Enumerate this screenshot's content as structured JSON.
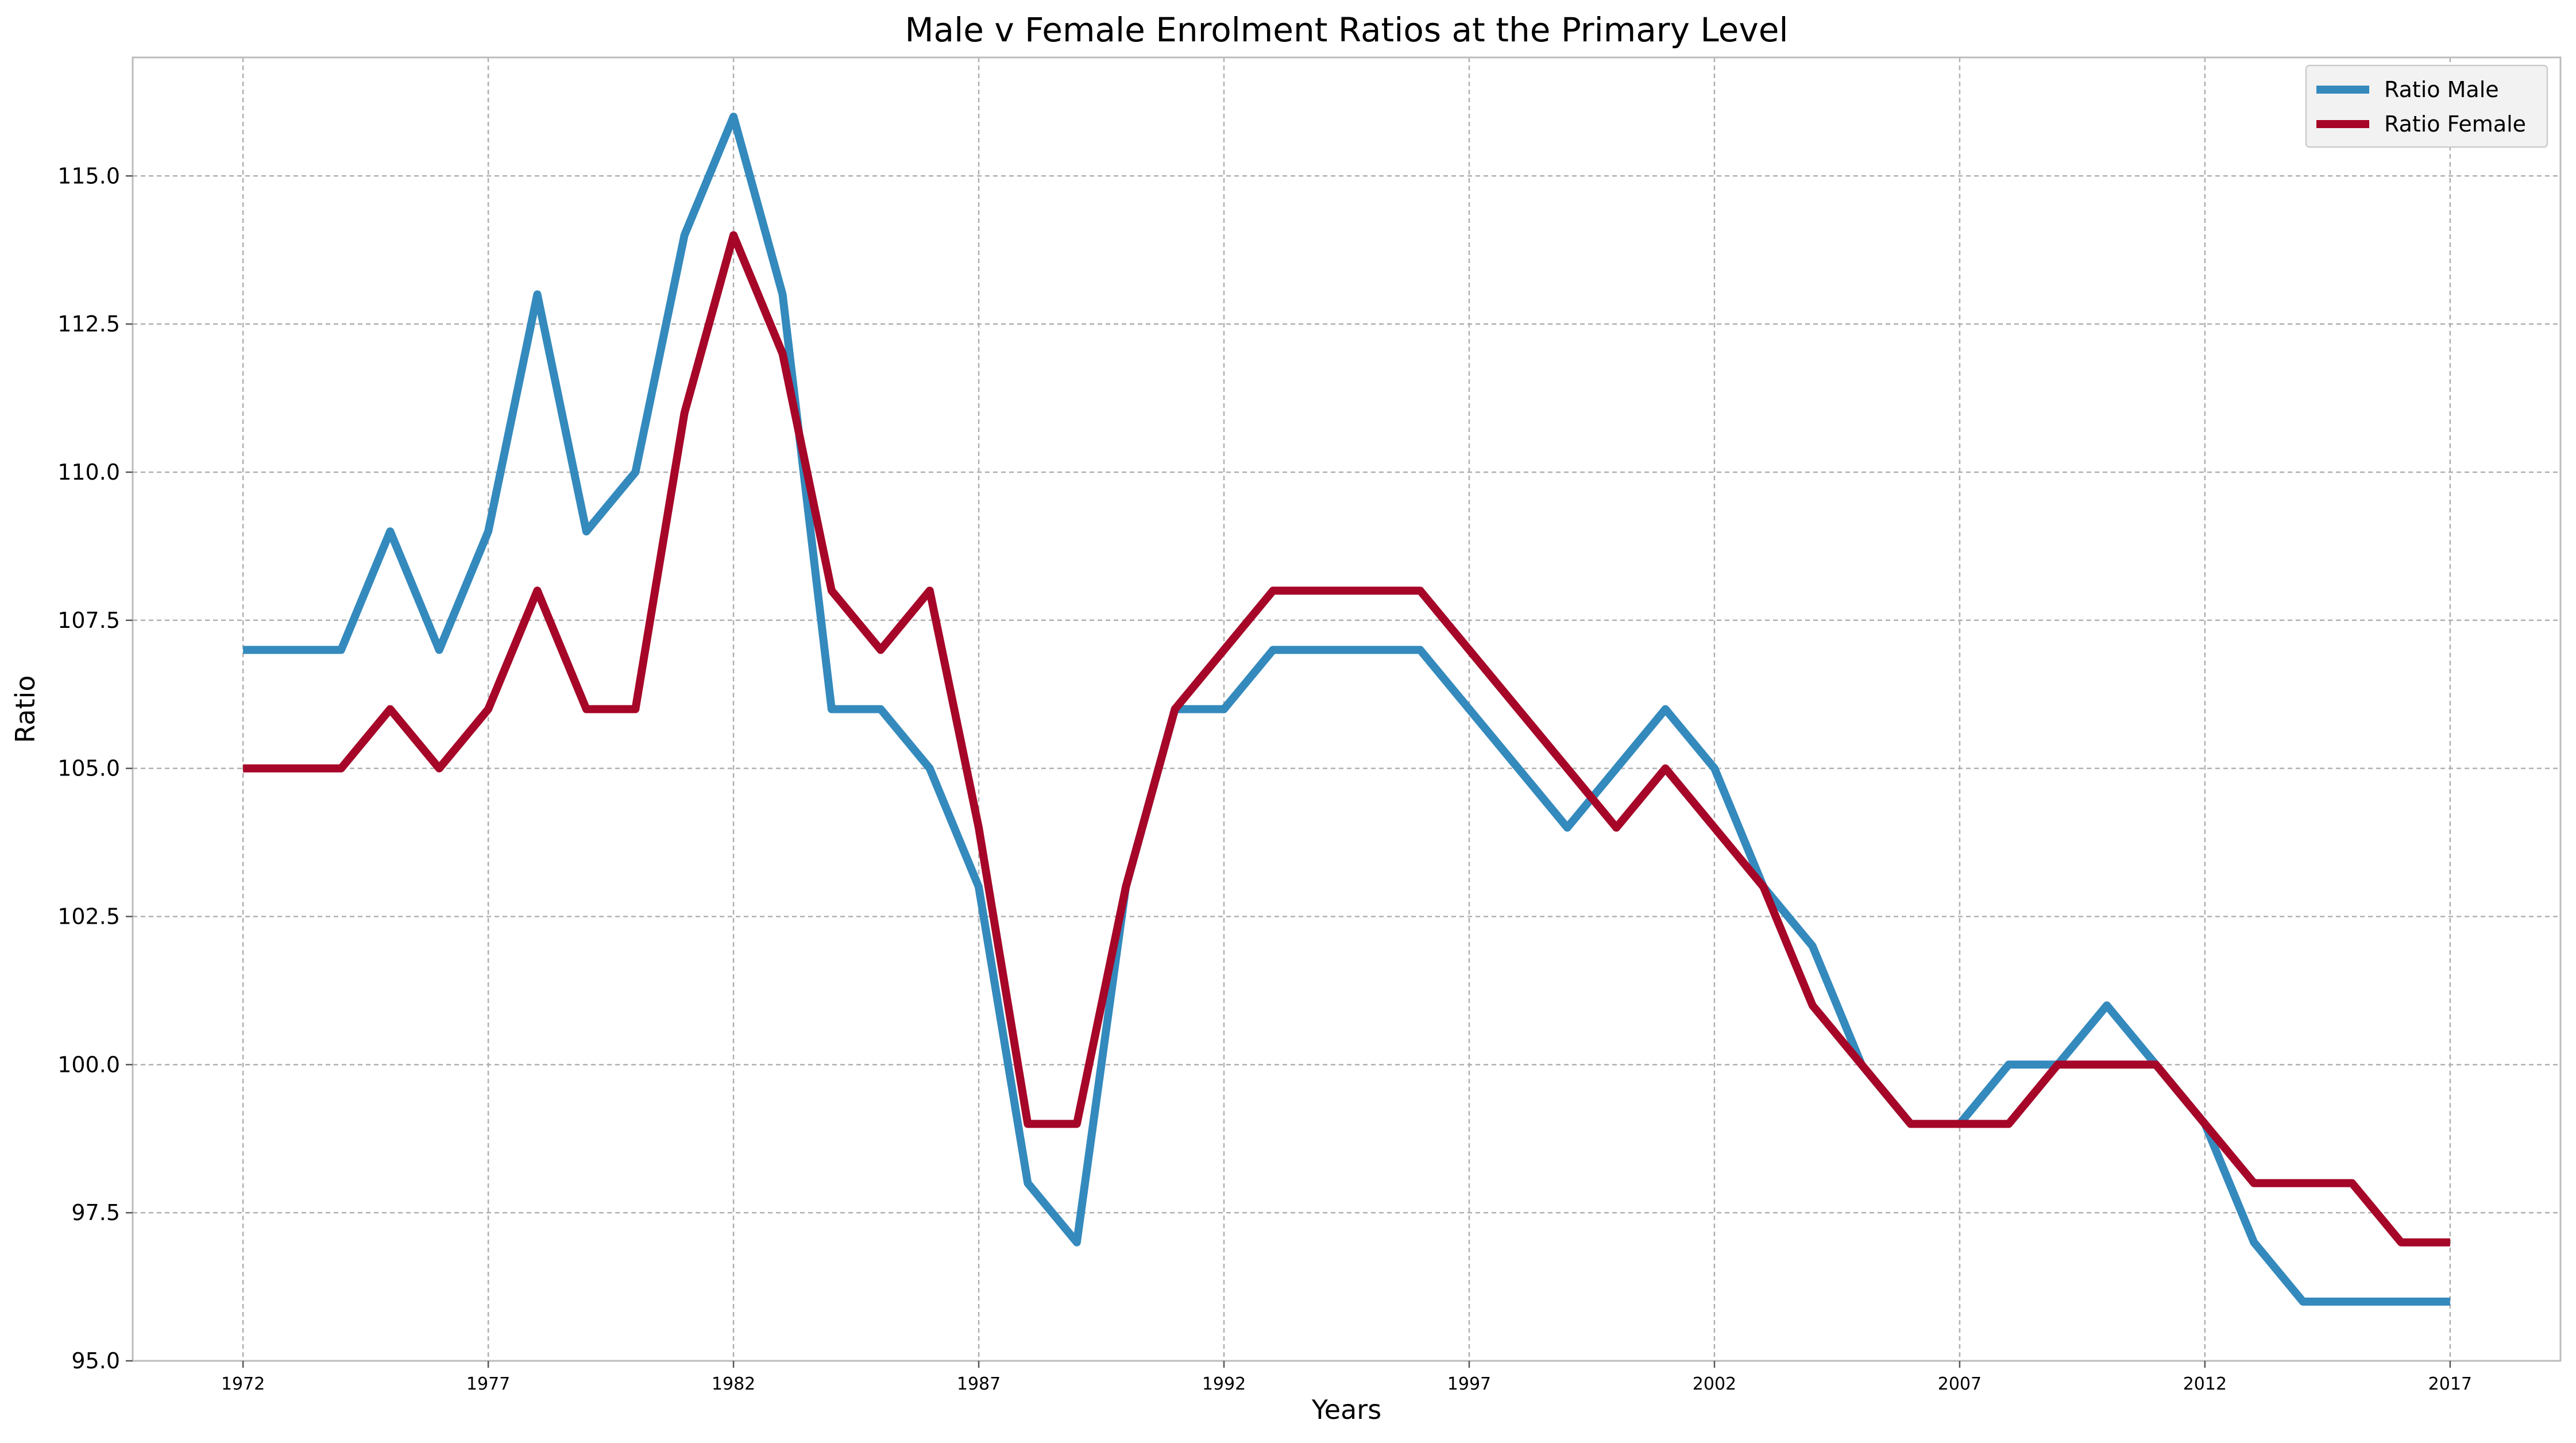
{
  "chart_data": {
    "type": "line",
    "title": "Male v Female Enrolment Ratios at the Primary Level",
    "xlabel": "Years",
    "ylabel": "Ratio",
    "x": [
      1972,
      1973,
      1974,
      1975,
      1976,
      1977,
      1978,
      1979,
      1980,
      1981,
      1982,
      1983,
      1984,
      1985,
      1986,
      1987,
      1988,
      1989,
      1990,
      1991,
      1992,
      1993,
      1994,
      1995,
      1996,
      1997,
      1998,
      1999,
      2000,
      2001,
      2002,
      2003,
      2004,
      2005,
      2006,
      2007,
      2008,
      2009,
      2010,
      2011,
      2012,
      2013,
      2014,
      2015,
      2016,
      2017
    ],
    "x_ticks": [
      "1972",
      "1977",
      "1982",
      "1987",
      "1992",
      "1997",
      "2002",
      "2007",
      "2012",
      "2017"
    ],
    "y_ticks": [
      "95.0",
      "97.5",
      "100.0",
      "102.5",
      "105.0",
      "107.5",
      "110.0",
      "112.5",
      "115.0"
    ],
    "xlim": [
      1969.75,
      2019.25
    ],
    "ylim": [
      95.0,
      117.0
    ],
    "grid": true,
    "legend_position": "top-right",
    "series": [
      {
        "name": "Ratio Male",
        "color": "#348ABD",
        "values": [
          107,
          107,
          107,
          109,
          107,
          109,
          113,
          109,
          110,
          114,
          116,
          113,
          106,
          106,
          105,
          103,
          98,
          97,
          103,
          106,
          106,
          107,
          107,
          107,
          107,
          106,
          105,
          104,
          105,
          106,
          105,
          103,
          102,
          100,
          99,
          99,
          100,
          100,
          101,
          100,
          99,
          97,
          96,
          96,
          96,
          96
        ]
      },
      {
        "name": "Ratio Female",
        "color": "#A60628",
        "values": [
          105,
          105,
          105,
          106,
          105,
          106,
          108,
          106,
          106,
          111,
          114,
          112,
          108,
          107,
          108,
          104,
          99,
          99,
          103,
          106,
          107,
          108,
          108,
          108,
          108,
          107,
          106,
          105,
          104,
          105,
          104,
          103,
          101,
          100,
          99,
          99,
          99,
          100,
          100,
          100,
          99,
          98,
          98,
          98,
          97,
          97
        ]
      }
    ]
  }
}
